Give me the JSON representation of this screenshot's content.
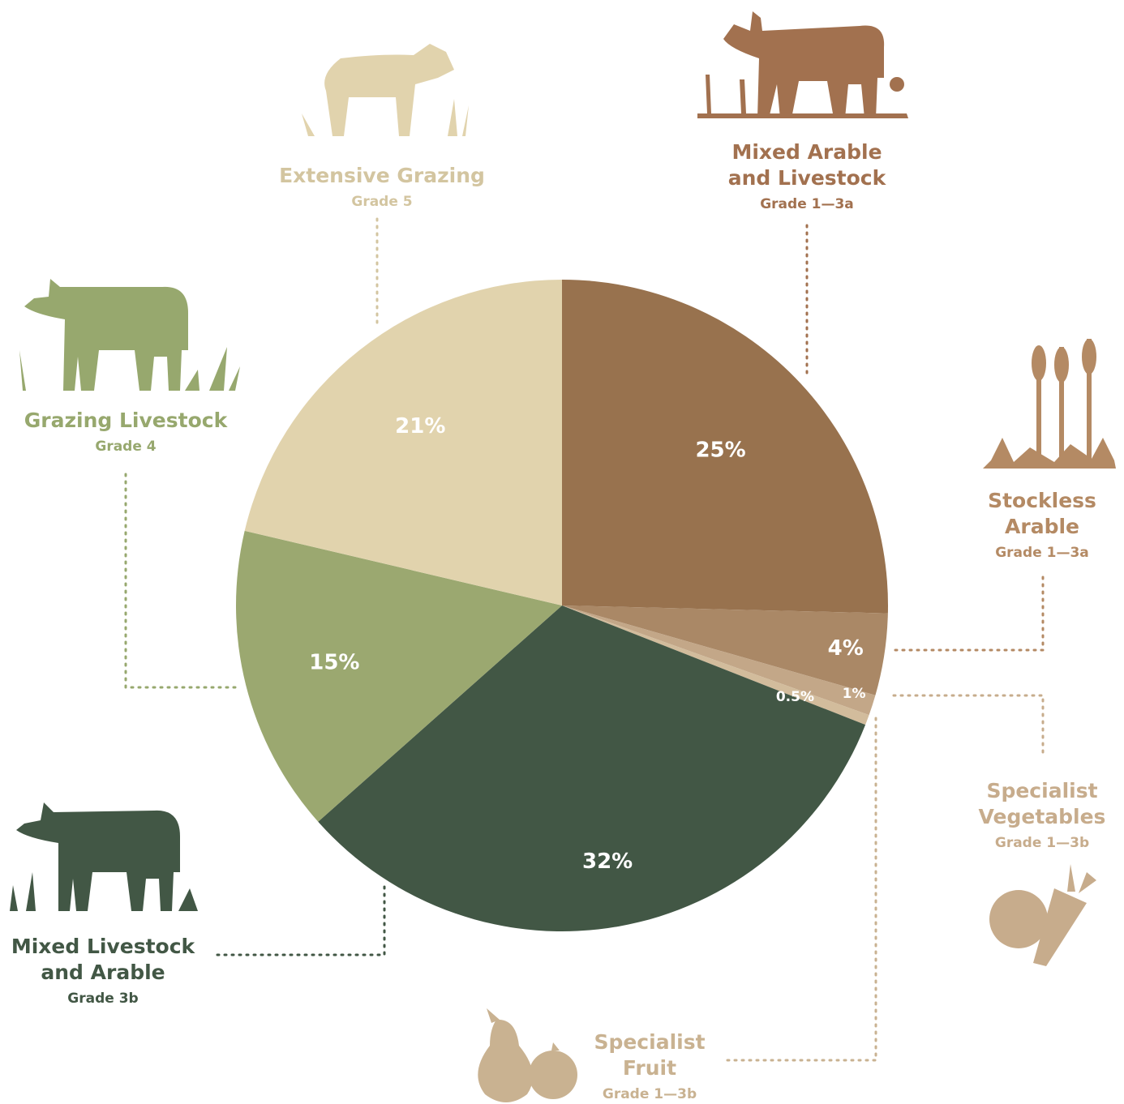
{
  "chart_data": {
    "type": "pie",
    "slices": [
      {
        "key": "mixed_arable",
        "name": "Mixed Arable\nand Livestock",
        "grade": "Grade 1—3a",
        "value": 25,
        "label": "25%",
        "color": "#98724E",
        "label_color": "#A2714F"
      },
      {
        "key": "stockless",
        "name": "Stockless\nArable",
        "grade": "Grade 1—3a",
        "value": 4,
        "label": "4%",
        "color": "#AA8866",
        "label_color": "#B48A64"
      },
      {
        "key": "vegetables",
        "name": "Specialist\nVegetables",
        "grade": "Grade 1—3b",
        "value": 1,
        "label": "1%",
        "color": "#C3A788",
        "label_color": "#C7AC8C"
      },
      {
        "key": "fruit",
        "name": "Specialist\nFruit",
        "grade": "Grade 1—3b",
        "value": 0.5,
        "label": "0.5%",
        "color": "#D2BC9C",
        "label_color": "#C9B291"
      },
      {
        "key": "mixed_livestock",
        "name": "Mixed Livestock\nand Arable",
        "grade": "Grade 3b",
        "value": 32,
        "label": "32%",
        "color": "#425745",
        "label_color": "#425745"
      },
      {
        "key": "grazing",
        "name": "Grazing Livestock",
        "grade": "Grade 4",
        "value": 15,
        "label": "15%",
        "color": "#9BA870",
        "label_color": "#97A86E"
      },
      {
        "key": "extensive",
        "name": "Extensive Grazing",
        "grade": "Grade 5",
        "value": 21,
        "label": "21%",
        "color": "#E1D3AD",
        "label_color": "#D3C5A0"
      }
    ],
    "start_angle": "12 o'clock",
    "direction": "clockwise",
    "legend": "none"
  }
}
